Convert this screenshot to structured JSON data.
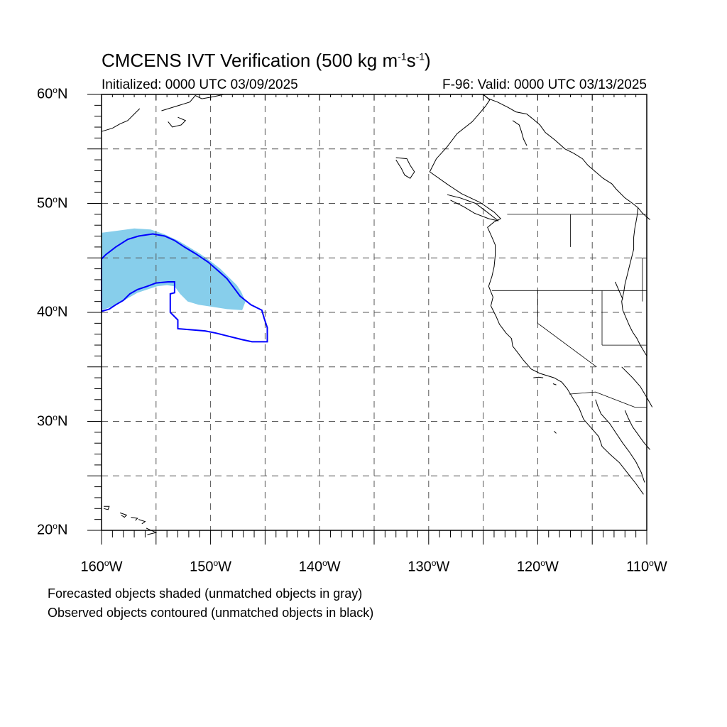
{
  "title": {
    "main": "CMCENS IVT Verification (500 kg m",
    "sup1": "-1",
    "mid": "s",
    "sup2": "-1",
    "end": ")"
  },
  "initialized_label": "Initialized: 0000 UTC 03/09/2025",
  "valid_label": "F-96: Valid: 0000 UTC 03/13/2025",
  "lat_labels": [
    {
      "value": "60",
      "hemi": "N"
    },
    {
      "value": "50",
      "hemi": "N"
    },
    {
      "value": "40",
      "hemi": "N"
    },
    {
      "value": "30",
      "hemi": "N"
    },
    {
      "value": "20",
      "hemi": "N"
    }
  ],
  "lon_labels": [
    {
      "value": "160",
      "hemi": "W"
    },
    {
      "value": "150",
      "hemi": "W"
    },
    {
      "value": "140",
      "hemi": "W"
    },
    {
      "value": "130",
      "hemi": "W"
    },
    {
      "value": "120",
      "hemi": "W"
    },
    {
      "value": "110",
      "hemi": "W"
    }
  ],
  "legend": {
    "forecast": "Forecasted objects shaded (unmatched objects in gray)",
    "observed": "Observed objects contoured (unmatched objects in black)"
  },
  "colors": {
    "forecast_fill": "#87CEEB",
    "observed_contour": "#0000FF",
    "coastline": "#000000",
    "grid": "#555555"
  },
  "map_extent": {
    "lon_min": -160,
    "lon_max": -110,
    "lat_min": 20,
    "lat_max": 60
  },
  "grid_spacing_deg": 5,
  "gridlines": "dashed",
  "forecast_object": {
    "lonlat": [
      [
        -160,
        40.2
      ],
      [
        -159.4,
        40.4
      ],
      [
        -158.8,
        40.6
      ],
      [
        -158.1,
        41.0
      ],
      [
        -157.4,
        41.4
      ],
      [
        -156.7,
        41.8
      ],
      [
        -155.8,
        42.1
      ],
      [
        -154.9,
        42.4
      ],
      [
        -154,
        42.5
      ],
      [
        -153.3,
        42.4
      ],
      [
        -152.8,
        41.7
      ],
      [
        -152.1,
        41.0
      ],
      [
        -151.1,
        40.7
      ],
      [
        -149.8,
        40.5
      ],
      [
        -148.5,
        40.3
      ],
      [
        -147.1,
        40.2
      ],
      [
        -146.8,
        41.0
      ],
      [
        -147.2,
        41.9
      ],
      [
        -147.6,
        42.5
      ],
      [
        -148.3,
        43.2
      ],
      [
        -149.1,
        44.0
      ],
      [
        -150.0,
        44.7
      ],
      [
        -151.0,
        45.4
      ],
      [
        -152.0,
        46.0
      ],
      [
        -153.0,
        46.6
      ],
      [
        -154.3,
        47.2
      ],
      [
        -155.5,
        47.6
      ],
      [
        -157,
        47.7
      ],
      [
        -158.5,
        47.5
      ],
      [
        -160,
        47.3
      ]
    ]
  },
  "observed_object": {
    "lonlat": [
      [
        -160,
        40.1
      ],
      [
        -159.3,
        40.3
      ],
      [
        -158.7,
        40.7
      ],
      [
        -158,
        41.1
      ],
      [
        -157.4,
        41.7
      ],
      [
        -156.7,
        42.1
      ],
      [
        -155.8,
        42.4
      ],
      [
        -155.0,
        42.7
      ],
      [
        -153.9,
        42.8
      ],
      [
        -153.3,
        42.8
      ],
      [
        -153.3,
        41.8
      ],
      [
        -153.7,
        41.7
      ],
      [
        -153.7,
        40.0
      ],
      [
        -153.0,
        39.3
      ],
      [
        -153.0,
        38.5
      ],
      [
        -150.5,
        38.3
      ],
      [
        -149.5,
        38.1
      ],
      [
        -148.3,
        37.8
      ],
      [
        -147.1,
        37.5
      ],
      [
        -146.2,
        37.3
      ],
      [
        -145.3,
        37.3
      ],
      [
        -144.8,
        37.3
      ],
      [
        -144.8,
        38.6
      ],
      [
        -145.1,
        39.5
      ],
      [
        -145.3,
        40.2
      ],
      [
        -146.3,
        40.7
      ],
      [
        -147.3,
        41.5
      ],
      [
        -147.9,
        42.3
      ],
      [
        -148.5,
        43.1
      ],
      [
        -149.4,
        43.9
      ],
      [
        -150.2,
        44.6
      ],
      [
        -151.4,
        45.4
      ],
      [
        -152.4,
        46.0
      ],
      [
        -153.3,
        46.6
      ],
      [
        -154.2,
        47.0
      ],
      [
        -155.3,
        47.2
      ],
      [
        -156.6,
        47.0
      ],
      [
        -157.6,
        46.7
      ],
      [
        -158.7,
        46.0
      ],
      [
        -159.6,
        45.3
      ],
      [
        -160,
        44.9
      ]
    ]
  },
  "coastlines": [
    [
      [
        -125.0,
        60
      ],
      [
        -124.5,
        59.6
      ],
      [
        -123.7,
        59.3
      ],
      [
        -122.7,
        58.8
      ],
      [
        -122.0,
        58.4
      ],
      [
        -121.0,
        58.2
      ],
      [
        -120.5,
        57.8
      ],
      [
        -119.8,
        57.2
      ],
      [
        -119.3,
        56.5
      ],
      [
        -118.4,
        55.8
      ],
      [
        -117.5,
        55.0
      ],
      [
        -116.7,
        54.6
      ],
      [
        -115.9,
        54.1
      ],
      [
        -115.4,
        53.5
      ],
      [
        -114.7,
        52.9
      ],
      [
        -114.0,
        52.3
      ],
      [
        -113.2,
        51.8
      ],
      [
        -112.8,
        51.3
      ],
      [
        -112.0,
        50.5
      ],
      [
        -111.3,
        50.0
      ],
      [
        -110.8,
        49.6
      ],
      [
        -110.4,
        49.1
      ],
      [
        -109.7,
        48.5
      ]
    ],
    [
      [
        -122.3,
        57.6
      ],
      [
        -121.7,
        57.2
      ],
      [
        -121.5,
        56.6
      ],
      [
        -121.3,
        55.9
      ],
      [
        -121.0,
        55.3
      ]
    ],
    [
      [
        -110.8,
        49.6
      ],
      [
        -110.9,
        48.8
      ],
      [
        -111.0,
        48.2
      ],
      [
        -111.1,
        47.7
      ],
      [
        -111.2,
        46.9
      ],
      [
        -111.2,
        46.3
      ],
      [
        -111.2,
        45.8
      ],
      [
        -111.4,
        45.0
      ],
      [
        -111.6,
        44.2
      ],
      [
        -111.8,
        43.4
      ],
      [
        -112.0,
        42.6
      ],
      [
        -112.1,
        41.9
      ],
      [
        -112.3,
        41.0
      ],
      [
        -112.2,
        40.2
      ],
      [
        -111.9,
        39.5
      ],
      [
        -111.6,
        38.8
      ],
      [
        -111.3,
        38.2
      ],
      [
        -110.9,
        37.6
      ],
      [
        -110.6,
        37.0
      ],
      [
        -110.3,
        36.5
      ],
      [
        -110,
        36.0
      ],
      [
        -109.4,
        35.1
      ],
      [
        -108.2,
        34.0
      ],
      [
        -107.5,
        33.4
      ],
      [
        -106.5,
        32.7
      ],
      [
        -105.4,
        31.8
      ],
      [
        -104.7,
        31.0
      ],
      [
        -104.0,
        30.0
      ],
      [
        -103.2,
        29.0
      ],
      [
        -102.5,
        28.0
      ],
      [
        -101.9,
        27.0
      ]
    ],
    [
      [
        -112.3,
        35.0
      ],
      [
        -111.3,
        34.0
      ],
      [
        -110.6,
        33.2
      ],
      [
        -110.0,
        32.2
      ],
      [
        -109.5,
        31.3
      ],
      [
        -109.0,
        30.4
      ],
      [
        -108.6,
        29.6
      ],
      [
        -108.0,
        28.7
      ],
      [
        -107.4,
        27.9
      ],
      [
        -106.8,
        27.1
      ],
      [
        -106.0,
        26.4
      ],
      [
        -105.3,
        25.6
      ],
      [
        -104.7,
        24.8
      ],
      [
        -104.0,
        24.0
      ],
      [
        -103.3,
        23.3
      ]
    ],
    [
      [
        -112.0,
        31.0
      ],
      [
        -111.7,
        30.3
      ],
      [
        -111.3,
        29.5
      ],
      [
        -110.8,
        28.8
      ],
      [
        -110.3,
        28.1
      ],
      [
        -109.7,
        27.4
      ],
      [
        -109.3,
        26.8
      ],
      [
        -108.8,
        26.1
      ],
      [
        -108.3,
        25.4
      ]
    ]
  ],
  "borders": [
    [
      [
        -122.8,
        49.0
      ],
      [
        -110,
        49.0
      ]
    ],
    [
      [
        -124.2,
        42.0
      ],
      [
        -110,
        42.0
      ]
    ],
    [
      [
        -120,
        42.0
      ],
      [
        -120,
        39.0
      ],
      [
        -114.6,
        35.0
      ]
    ],
    [
      [
        -117,
        49.0
      ],
      [
        -117,
        46.0
      ]
    ],
    [
      [
        -114.1,
        42.0
      ],
      [
        -114.1,
        37.0
      ]
    ],
    [
      [
        -114.1,
        37.0
      ],
      [
        -110,
        37.0
      ]
    ],
    [
      [
        -117.1,
        32.5
      ],
      [
        -114.7,
        32.7
      ],
      [
        -111.1,
        31.3
      ],
      [
        -110,
        31.3
      ]
    ],
    [
      [
        -110.4,
        45.0
      ],
      [
        -110,
        45.0
      ]
    ],
    [
      [
        -110.4,
        45.0
      ],
      [
        -110.4,
        41.0
      ]
    ]
  ],
  "west_coast": [
    [
      -125.0,
      60
    ],
    [
      -124.4,
      59.5
    ],
    [
      -124.8,
      58.9
    ],
    [
      -126.0,
      57.5
    ],
    [
      -127.4,
      56.4
    ],
    [
      -128.3,
      55.2
    ],
    [
      -129.3,
      54.1
    ],
    [
      -129.9,
      52.9
    ],
    [
      -128.2,
      51.7
    ],
    [
      -127.0,
      50.9
    ],
    [
      -125.3,
      50.1
    ],
    [
      -124.0,
      49.2
    ],
    [
      -123.4,
      48.6
    ],
    [
      -124.0,
      48.3
    ],
    [
      -124.6,
      47.8
    ],
    [
      -124.2,
      46.9
    ],
    [
      -123.9,
      46.2
    ],
    [
      -123.9,
      45.2
    ],
    [
      -124.0,
      44.2
    ],
    [
      -124.2,
      43.3
    ],
    [
      -124.5,
      42.4
    ],
    [
      -124.1,
      41.4
    ],
    [
      -124.3,
      40.6
    ],
    [
      -123.8,
      39.6
    ],
    [
      -123.5,
      38.9
    ],
    [
      -122.9,
      38.1
    ],
    [
      -122.4,
      37.6
    ],
    [
      -122.3,
      36.9
    ],
    [
      -121.9,
      36.4
    ],
    [
      -121.3,
      35.6
    ],
    [
      -120.6,
      34.8
    ],
    [
      -119.8,
      34.4
    ],
    [
      -118.5,
      34.0
    ],
    [
      -117.8,
      33.6
    ],
    [
      -117.3,
      33.0
    ],
    [
      -116.7,
      32.0
    ],
    [
      -116.2,
      31.2
    ],
    [
      -115.8,
      30.2
    ],
    [
      -115.1,
      29.4
    ],
    [
      -114.4,
      28.6
    ],
    [
      -114.1,
      27.7
    ],
    [
      -113.4,
      27.0
    ],
    [
      -112.5,
      26.2
    ],
    [
      -111.8,
      25.3
    ],
    [
      -111.0,
      24.3
    ],
    [
      -110.3,
      23.3
    ]
  ],
  "baja_inner": [
    [
      -114.7,
      32.0
    ],
    [
      -114.5,
      31.4
    ],
    [
      -114.2,
      30.7
    ],
    [
      -113.4,
      29.8
    ],
    [
      -112.8,
      28.9
    ],
    [
      -112.2,
      28.0
    ],
    [
      -111.6,
      27.2
    ],
    [
      -111.0,
      26.3
    ],
    [
      -110.5,
      25.3
    ],
    [
      -110.2,
      24.4
    ]
  ],
  "islands": [
    [
      [
        -159.8,
        22.2
      ],
      [
        -159.3,
        22.2
      ],
      [
        -159.4,
        21.9
      ],
      [
        -159.8,
        22.0
      ]
    ],
    [
      [
        -158.3,
        21.6
      ],
      [
        -157.7,
        21.4
      ],
      [
        -157.9,
        21.2
      ],
      [
        -158.2,
        21.4
      ]
    ],
    [
      [
        -157.3,
        21.2
      ],
      [
        -156.7,
        21.1
      ],
      [
        -156.9,
        20.9
      ]
    ],
    [
      [
        -156.6,
        21.0
      ],
      [
        -156.0,
        20.8
      ],
      [
        -156.3,
        20.6
      ]
    ],
    [
      [
        -155.9,
        20.2
      ],
      [
        -155.0,
        19.8
      ],
      [
        -155.3,
        19.3
      ],
      [
        -155.8,
        19.6
      ]
    ],
    [
      [
        -153.0,
        57.9
      ],
      [
        -152.3,
        57.6
      ],
      [
        -152.7,
        57.2
      ],
      [
        -153.5,
        57.0
      ],
      [
        -153.9,
        57.5
      ]
    ],
    [
      [
        -154.5,
        58.5
      ],
      [
        -153.2,
        58.9
      ],
      [
        -151.9,
        59.3
      ],
      [
        -151.4,
        59.9
      ],
      [
        -150.8,
        59.6
      ],
      [
        -149.7,
        59.8
      ],
      [
        -148.8,
        60.0
      ]
    ],
    [
      [
        -160,
        56.6
      ],
      [
        -159.0,
        56.9
      ],
      [
        -158.3,
        57.3
      ],
      [
        -157.6,
        57.6
      ],
      [
        -157.0,
        58.2
      ],
      [
        -156.5,
        58.7
      ]
    ],
    [
      [
        -133.0,
        54.2
      ],
      [
        -132.0,
        54.1
      ],
      [
        -131.7,
        53.5
      ],
      [
        -131.3,
        52.9
      ],
      [
        -131.7,
        52.3
      ],
      [
        -132.2,
        52.6
      ],
      [
        -132.5,
        53.2
      ],
      [
        -133.0,
        54.0
      ]
    ],
    [
      [
        -128.3,
        50.8
      ],
      [
        -127.1,
        50.5
      ],
      [
        -125.7,
        50.0
      ],
      [
        -124.9,
        49.4
      ],
      [
        -123.6,
        48.4
      ],
      [
        -124.5,
        48.6
      ],
      [
        -125.8,
        49.1
      ],
      [
        -126.8,
        49.7
      ],
      [
        -128.0,
        50.3
      ]
    ],
    [
      [
        -120.4,
        34.0
      ],
      [
        -119.9,
        34.05
      ],
      [
        -119.5,
        34.0
      ]
    ],
    [
      [
        -118.6,
        33.45
      ],
      [
        -118.3,
        33.35
      ]
    ],
    [
      [
        -118.5,
        29.1
      ],
      [
        -118.3,
        28.9
      ]
    ],
    [
      [
        -112.9,
        42.8
      ],
      [
        -112.2,
        41.2
      ]
    ]
  ]
}
